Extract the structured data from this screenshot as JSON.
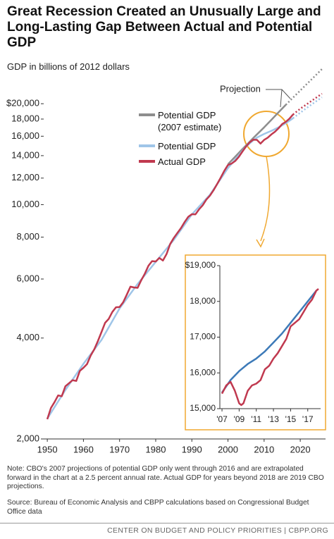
{
  "title": "Great Recession Created an Unusually Large and Long-Lasting Gap Between Actual and Potential GDP",
  "subtitle": "GDP in billions of 2012 dollars",
  "note": "Note: CBO's 2007 projections of potential GDP only went through 2016 and are extrapolated forward in the chart at a 2.5 percent annual rate.  Actual GDP for years beyond 2018 are 2019 CBO projections.",
  "source": "Source: Bureau of Economic Analysis and CBPP calculations based on Congressional Budget Office data",
  "footer": "CENTER ON BUDGET AND POLICY PRIORITIES | CBPP.ORG",
  "chart_data": [
    {
      "type": "line",
      "log_scale_y": true,
      "annotation": "Projection",
      "xlim": [
        1949,
        2027
      ],
      "xticks": [
        1950,
        1960,
        1970,
        1980,
        1990,
        2000,
        2010,
        2020
      ],
      "ylim": [
        2000,
        26000
      ],
      "yticks": [
        {
          "value": 2000,
          "label": "2,000"
        },
        {
          "value": 4000,
          "label": "4,000"
        },
        {
          "value": 6000,
          "label": "6,000"
        },
        {
          "value": 8000,
          "label": "8,000"
        },
        {
          "value": 10000,
          "label": "10,000"
        },
        {
          "value": 12000,
          "label": "12,000"
        },
        {
          "value": 14000,
          "label": "14,000"
        },
        {
          "value": 16000,
          "label": "16,000"
        },
        {
          "value": 18000,
          "label": "18,000"
        },
        {
          "value": 20000,
          "label": "$20,000"
        }
      ],
      "series": [
        {
          "name": "Potential GDP (2007 estimate)",
          "color": "#8e8e8e",
          "projection_from": 2016,
          "x": [
            2000,
            2002,
            2004,
            2006,
            2007,
            2008,
            2010,
            2012,
            2014,
            2016,
            2018,
            2020,
            2022,
            2024,
            2026
          ],
          "values": [
            13200,
            13900,
            14650,
            15400,
            15800,
            16200,
            17000,
            17900,
            18850,
            19850,
            20850,
            21900,
            23000,
            24150,
            25380
          ]
        },
        {
          "name": "Potential GDP",
          "color": "#9fc5e8",
          "projection_from": 2018,
          "x": [
            1950,
            1955,
            1960,
            1965,
            1970,
            1975,
            1980,
            1985,
            1990,
            1995,
            2000,
            2005,
            2007,
            2008,
            2010,
            2012,
            2014,
            2016,
            2018,
            2020,
            2022,
            2024,
            2026
          ],
          "values": [
            2300,
            2800,
            3350,
            3950,
            4900,
            5800,
            6750,
            7850,
            9350,
            10700,
            12850,
            14900,
            15550,
            15850,
            16250,
            16600,
            17000,
            17500,
            18100,
            18800,
            19500,
            20200,
            20900
          ]
        },
        {
          "name": "Actual GDP",
          "color": "#c0394f",
          "projection_from": 2018,
          "x": [
            1950,
            1951,
            1952,
            1953,
            1954,
            1955,
            1956,
            1957,
            1958,
            1959,
            1960,
            1961,
            1962,
            1963,
            1964,
            1965,
            1966,
            1967,
            1968,
            1969,
            1970,
            1971,
            1972,
            1973,
            1974,
            1975,
            1976,
            1977,
            1978,
            1979,
            1980,
            1981,
            1982,
            1983,
            1984,
            1985,
            1986,
            1987,
            1988,
            1989,
            1990,
            1991,
            1992,
            1993,
            1994,
            1995,
            1996,
            1997,
            1998,
            1999,
            2000,
            2001,
            2002,
            2003,
            2004,
            2005,
            2006,
            2007,
            2008,
            2009,
            2010,
            2011,
            2012,
            2013,
            2014,
            2015,
            2016,
            2017,
            2018,
            2019,
            2020,
            2021,
            2022,
            2023,
            2024,
            2025,
            2026
          ],
          "values": [
            2290,
            2475,
            2576,
            2697,
            2681,
            2873,
            2933,
            2995,
            2978,
            3192,
            3260,
            3343,
            3548,
            3702,
            3917,
            4171,
            4442,
            4562,
            4783,
            4942,
            4951,
            5115,
            5387,
            5691,
            5662,
            5647,
            5953,
            6229,
            6575,
            6784,
            6767,
            6935,
            6810,
            7123,
            7633,
            7951,
            8229,
            8516,
            8872,
            9193,
            9366,
            9356,
            9685,
            9954,
            10353,
            10637,
            11037,
            11527,
            12046,
            12624,
            13131,
            13262,
            13493,
            13879,
            14406,
            14913,
            15338,
            15626,
            15605,
            15209,
            15599,
            15841,
            16197,
            16495,
            16900,
            17387,
            17659,
            18051,
            18566,
            18950,
            19330,
            19660,
            20000,
            20350,
            20700,
            21060,
            21420
          ]
        }
      ]
    },
    {
      "type": "line",
      "log_scale_y": false,
      "xlim": [
        2006.75,
        2018.5
      ],
      "xticks": [
        {
          "value": 2007,
          "label": "'07"
        },
        {
          "value": 2009,
          "label": "'09"
        },
        {
          "value": 2011,
          "label": "'11"
        },
        {
          "value": 2013,
          "label": "'13"
        },
        {
          "value": 2015,
          "label": "'15"
        },
        {
          "value": 2017,
          "label": "'17"
        }
      ],
      "ylim": [
        15000,
        19000
      ],
      "yticks": [
        {
          "value": 15000,
          "label": "15,000"
        },
        {
          "value": 16000,
          "label": "16,000"
        },
        {
          "value": 17000,
          "label": "17,000"
        },
        {
          "value": 18000,
          "label": "18,000"
        },
        {
          "value": 19000,
          "label": "$19,000"
        }
      ],
      "series": [
        {
          "color": "#3d7ab8",
          "x": [
            2007,
            2008,
            2009,
            2010,
            2011,
            2012,
            2013,
            2014,
            2015,
            2016,
            2017,
            2018
          ],
          "values": [
            15450,
            15800,
            16050,
            16250,
            16400,
            16600,
            16850,
            17100,
            17400,
            17700,
            18000,
            18300
          ]
        },
        {
          "color": "#c0394f",
          "x": [
            2007,
            2007.5,
            2008,
            2008.5,
            2009,
            2009.25,
            2009.5,
            2010,
            2010.5,
            2011,
            2011.5,
            2012,
            2012.5,
            2013,
            2013.5,
            2014,
            2014.5,
            2015,
            2015.5,
            2016,
            2016.5,
            2017,
            2017.5,
            2018,
            2018.25
          ],
          "values": [
            15420,
            15650,
            15750,
            15500,
            15150,
            15100,
            15150,
            15500,
            15650,
            15700,
            15800,
            16100,
            16200,
            16400,
            16550,
            16750,
            16950,
            17300,
            17400,
            17500,
            17700,
            17900,
            18050,
            18300,
            18350
          ]
        }
      ]
    }
  ]
}
